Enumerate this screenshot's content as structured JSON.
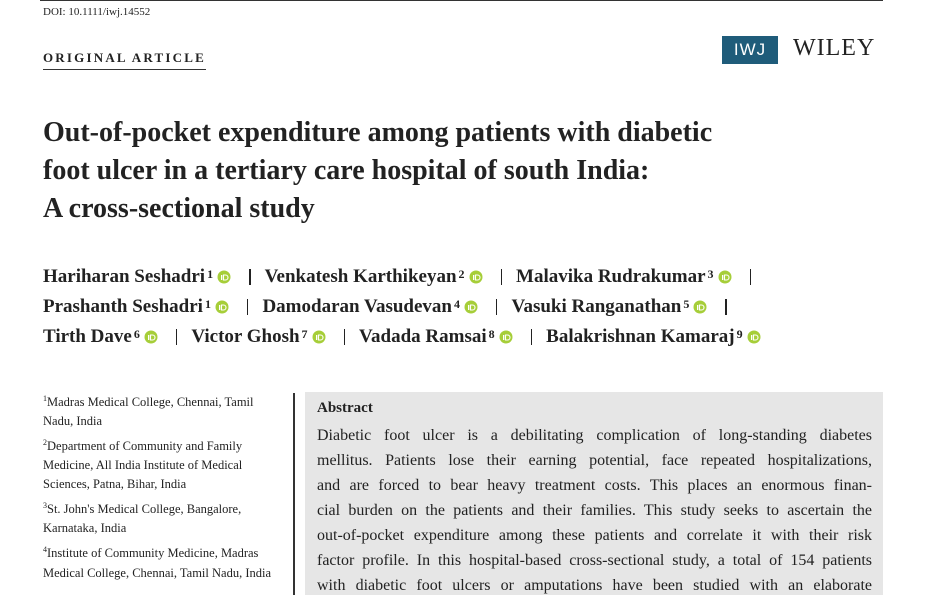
{
  "doi": "DOI: 10.1111/iwj.14552",
  "section": "ORIGINAL ARTICLE",
  "logo": {
    "journal": "IWJ",
    "publisher": "WILEY"
  },
  "title_lines": [
    "Out-of-pocket expenditure among patients with diabetic",
    "foot ulcer in a tertiary care hospital of south India:",
    "A cross-sectional study"
  ],
  "author_rows": [
    [
      {
        "name": "Hariharan Seshadri",
        "sup": "1"
      },
      {
        "name": "Venkatesh Karthikeyan",
        "sup": "2"
      },
      {
        "name": "Malavika Rudrakumar",
        "sup": "3"
      }
    ],
    [
      {
        "name": "Prashanth Seshadri",
        "sup": "1"
      },
      {
        "name": "Damodaran Vasudevan",
        "sup": "4"
      },
      {
        "name": "Vasuki Ranganathan",
        "sup": "5"
      }
    ],
    [
      {
        "name": "Tirth Dave",
        "sup": "6"
      },
      {
        "name": "Victor Ghosh",
        "sup": "7"
      },
      {
        "name": "Vadada Ramsai",
        "sup": "8"
      },
      {
        "name": "Balakrishnan Kamaraj",
        "sup": "9"
      }
    ]
  ],
  "affiliations": [
    {
      "sup": "1",
      "text": "Madras Medical College, Chennai, Tamil Nadu, India"
    },
    {
      "sup": "2",
      "text": "Department of Community and Family Medicine, All India Institute of Medical Sciences, Patna, Bihar, India"
    },
    {
      "sup": "3",
      "text": "St. John's Medical College, Bangalore, Karnataka, India"
    },
    {
      "sup": "4",
      "text": "Institute of Community Medicine, Madras Medical College, Chennai, Tamil Nadu, India"
    }
  ],
  "abstract": {
    "heading": "Abstract",
    "lines": [
      "Diabetic foot ulcer is a debilitating complication of long-standing diabetes",
      "mellitus. Patients lose their earning potential, face repeated hospitalizations,",
      "and are forced to bear heavy treatment costs. This places an enormous finan-",
      "cial burden on the patients and their families. This study seeks to ascertain the",
      "out-of-pocket expenditure among these patients and correlate it with their risk",
      "factor profile. In this hospital-based cross-sectional study, a total of 154 patients",
      "with diabetic foot ulcers or amputations have been studied with an elaborate"
    ]
  }
}
